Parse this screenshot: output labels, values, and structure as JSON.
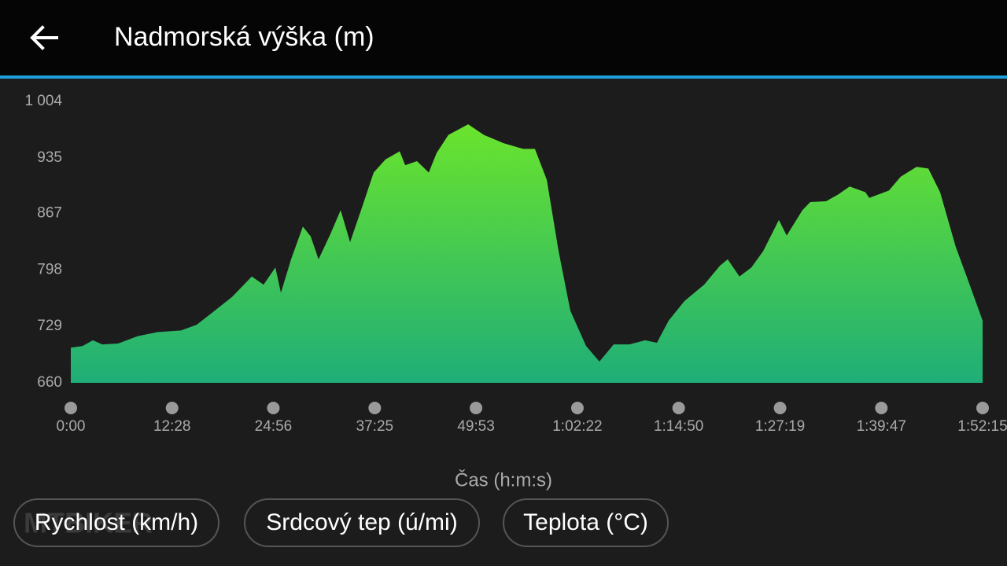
{
  "header": {
    "title": "Nadmorská výška (m)"
  },
  "chart_data": {
    "type": "area",
    "x_label": "Čas (h:m:s)",
    "x": [
      0,
      87,
      163,
      232,
      349,
      494,
      639,
      814,
      930,
      1046,
      1191,
      1337,
      1424,
      1511,
      1552,
      1627,
      1714,
      1772,
      1830,
      1918,
      1993,
      2063,
      2150,
      2237,
      2324,
      2429,
      2470,
      2557,
      2644,
      2702,
      2789,
      2935,
      3051,
      3196,
      3341,
      3428,
      3516,
      3603,
      3690,
      3806,
      3905,
      4010,
      4126,
      4242,
      4329,
      4416,
      4533,
      4678,
      4794,
      4852,
      4939,
      5027,
      5114,
      5230,
      5288,
      5404,
      5462,
      5579,
      5666,
      5753,
      5869,
      5898,
      6043,
      6130,
      6247,
      6334,
      6421,
      6537,
      6624,
      6735
    ],
    "values": [
      703,
      705,
      712,
      707,
      708,
      717,
      722,
      724,
      731,
      746,
      765,
      790,
      780,
      801,
      770,
      811,
      851,
      839,
      811,
      842,
      871,
      832,
      874,
      917,
      933,
      943,
      926,
      931,
      917,
      941,
      963,
      976,
      963,
      953,
      946,
      946,
      908,
      821,
      748,
      705,
      686,
      707,
      707,
      712,
      709,
      736,
      760,
      780,
      803,
      811,
      790,
      801,
      821,
      859,
      840,
      871,
      881,
      882,
      890,
      900,
      893,
      886,
      895,
      912,
      924,
      922,
      893,
      826,
      787,
      736
    ],
    "color_top": "#6ae42c",
    "color_bottom": "#1fae78",
    "xlim": [
      0,
      6735
    ],
    "xticks": [
      {
        "value": 0,
        "label": "0:00"
      },
      {
        "value": 748,
        "label": "12:28"
      },
      {
        "value": 1496,
        "label": "24:56"
      },
      {
        "value": 2245,
        "label": "37:25"
      },
      {
        "value": 2993,
        "label": "49:53"
      },
      {
        "value": 3742,
        "label": "1:02:22"
      },
      {
        "value": 4490,
        "label": "1:14:50"
      },
      {
        "value": 5239,
        "label": "1:27:19"
      },
      {
        "value": 5987,
        "label": "1:39:47"
      },
      {
        "value": 6735,
        "label": "1:52:15"
      }
    ],
    "ylim": [
      660,
      1004
    ],
    "yticks": [
      660,
      729,
      798,
      867,
      935,
      {
        "value": 1004,
        "label": "1 004"
      }
    ]
  },
  "buttons": [
    "Rychlost (km/h)",
    "Srdcový tep (ú/mi)",
    "Teplota (°C)"
  ],
  "watermark": "MTBIKER"
}
